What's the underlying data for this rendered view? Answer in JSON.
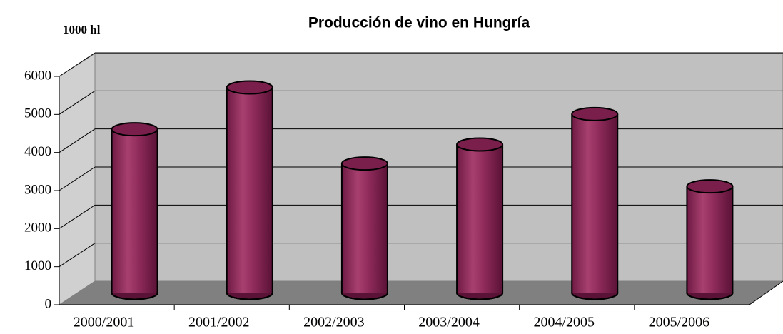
{
  "chart_data": {
    "type": "bar",
    "title": "Producción de vino en Hungría",
    "y_axis_label": "1000 hl",
    "categories": [
      "2000/2001",
      "2001/2002",
      "2002/2003",
      "2003/2004",
      "2004/2005",
      "2005/2006"
    ],
    "values": [
      4300,
      5400,
      3400,
      3900,
      4700,
      2800
    ],
    "color": "#8e2a5a",
    "ylim": [
      0,
      6000
    ],
    "yticks": [
      0,
      1000,
      2000,
      3000,
      4000,
      5000,
      6000
    ],
    "grid": true
  }
}
